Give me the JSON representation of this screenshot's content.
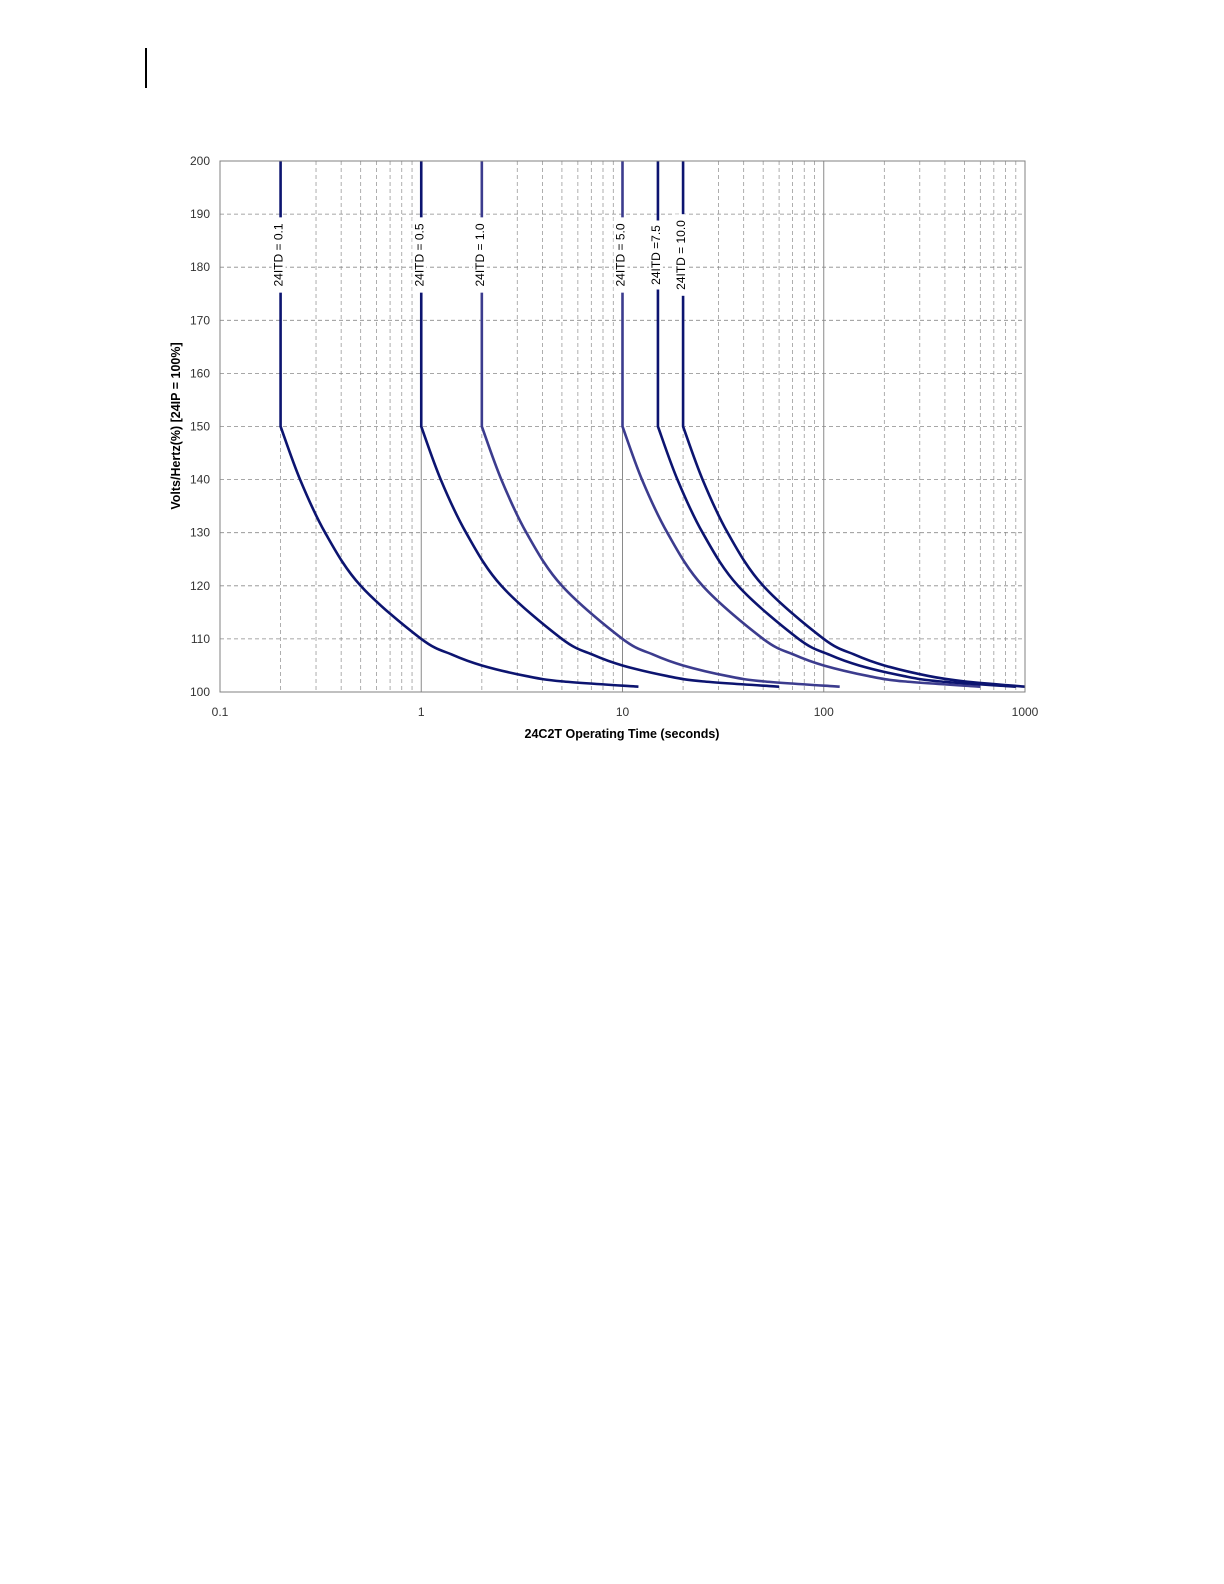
{
  "chart_data": {
    "type": "line",
    "title": "",
    "xlabel": "24C2T Operating Time (seconds)",
    "ylabel": "Volts/Hertz(%)  [24IP = 100%]",
    "xscale": "log",
    "xlim": [
      0.1,
      1000
    ],
    "ylim": [
      100,
      200
    ],
    "x_ticks": [
      "0.1",
      "1",
      "10",
      "100",
      "1000"
    ],
    "y_ticks": [
      "100",
      "110",
      "120",
      "130",
      "140",
      "150",
      "160",
      "170",
      "180",
      "190",
      "200"
    ],
    "grid": true,
    "legend": "none",
    "series": [
      {
        "label": "24ITD = 0.1",
        "color": "#0c1470",
        "points": [
          [
            0.2,
            200
          ],
          [
            0.2,
            150
          ],
          [
            0.25,
            140
          ],
          [
            0.333,
            130
          ],
          [
            0.5,
            120
          ],
          [
            1,
            110
          ],
          [
            1.43,
            107
          ],
          [
            2,
            105
          ],
          [
            3.33,
            103
          ],
          [
            5,
            102
          ],
          [
            12,
            101
          ]
        ]
      },
      {
        "label": "24ITD = 0.5",
        "color": "#0c1470",
        "points": [
          [
            1,
            200
          ],
          [
            1,
            150
          ],
          [
            1.25,
            140
          ],
          [
            1.67,
            130
          ],
          [
            2.5,
            120
          ],
          [
            5,
            110
          ],
          [
            7.14,
            107
          ],
          [
            10,
            105
          ],
          [
            16.7,
            103
          ],
          [
            25,
            102
          ],
          [
            60,
            101
          ]
        ]
      },
      {
        "label": "24ITD = 1.0",
        "color": "#3c3c8e",
        "points": [
          [
            2,
            200
          ],
          [
            2,
            150
          ],
          [
            2.5,
            140
          ],
          [
            3.33,
            130
          ],
          [
            5,
            120
          ],
          [
            10,
            110
          ],
          [
            14.3,
            107
          ],
          [
            20,
            105
          ],
          [
            33.3,
            103
          ],
          [
            50,
            102
          ],
          [
            120,
            101
          ]
        ]
      },
      {
        "label": "24ITD = 5.0",
        "color": "#3c3c8e",
        "points": [
          [
            10,
            200
          ],
          [
            10,
            150
          ],
          [
            12.5,
            140
          ],
          [
            16.7,
            130
          ],
          [
            25,
            120
          ],
          [
            50,
            110
          ],
          [
            71.4,
            107
          ],
          [
            100,
            105
          ],
          [
            167,
            103
          ],
          [
            250,
            102
          ],
          [
            600,
            101
          ]
        ]
      },
      {
        "label": "24ITD =7.5",
        "color": "#0c1470",
        "points": [
          [
            15,
            200
          ],
          [
            15,
            150
          ],
          [
            18.75,
            140
          ],
          [
            25,
            130
          ],
          [
            37.5,
            120
          ],
          [
            75,
            110
          ],
          [
            107,
            107
          ],
          [
            150,
            105
          ],
          [
            250,
            103
          ],
          [
            375,
            102
          ],
          [
            900,
            101
          ]
        ]
      },
      {
        "label": "24ITD = 10.0",
        "color": "#0c1470",
        "points": [
          [
            20,
            200
          ],
          [
            20,
            150
          ],
          [
            25,
            140
          ],
          [
            33.3,
            130
          ],
          [
            50,
            120
          ],
          [
            100,
            110
          ],
          [
            143,
            107
          ],
          [
            200,
            105
          ],
          [
            333,
            103
          ],
          [
            500,
            102
          ],
          [
            1000,
            101
          ]
        ]
      }
    ]
  }
}
